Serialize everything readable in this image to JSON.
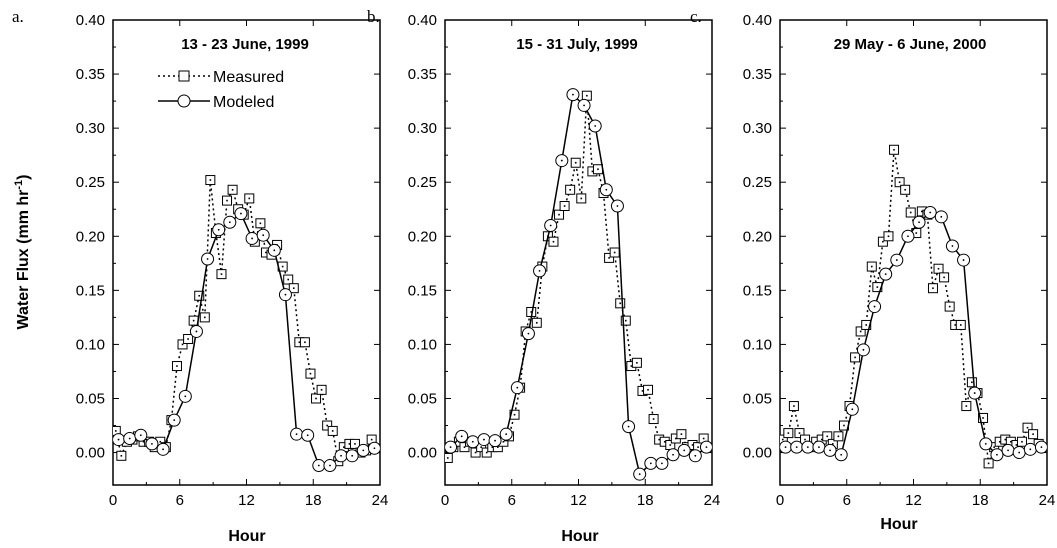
{
  "figure": {
    "ylabel_main": "Water Flux (mm hr",
    "ylabel_sup": "-1",
    "ylabel_close": ")"
  },
  "legend": {
    "measured": "Measured",
    "modeled": "Modeled"
  },
  "colors": {
    "ink": "#000000",
    "marker_fill": "#ffffff"
  },
  "chart_data": [
    {
      "type": "line",
      "panel": "a.",
      "title": "13 - 23 June, 1999",
      "xlabel": "Hour",
      "ylabel": "Water Flux (mm hr-1)",
      "xlim": [
        0,
        24
      ],
      "ylim": [
        -0.03,
        0.4
      ],
      "xticks": [
        0,
        6,
        12,
        18,
        24
      ],
      "yticks": [
        0.0,
        0.05,
        0.1,
        0.15,
        0.2,
        0.25,
        0.3,
        0.35,
        0.4
      ],
      "legend_position": "top-left",
      "series": [
        {
          "name": "Measured",
          "style": "dotted",
          "marker": "square",
          "points": [
            [
              0.25,
              0.02
            ],
            [
              0.75,
              -0.003
            ],
            [
              1.25,
              0.01
            ],
            [
              1.75,
              0.012
            ],
            [
              2.25,
              0.015
            ],
            [
              2.75,
              0.01
            ],
            [
              3.25,
              0.01
            ],
            [
              3.75,
              0.005
            ],
            [
              4.25,
              0.01
            ],
            [
              4.75,
              0.005
            ],
            [
              5.25,
              0.03
            ],
            [
              5.75,
              0.08
            ],
            [
              6.25,
              0.1
            ],
            [
              6.75,
              0.105
            ],
            [
              7.25,
              0.122
            ],
            [
              7.75,
              0.145
            ],
            [
              8.25,
              0.125
            ],
            [
              8.75,
              0.252
            ],
            [
              9.25,
              0.203
            ],
            [
              9.75,
              0.165
            ],
            [
              10.25,
              0.233
            ],
            [
              10.75,
              0.243
            ],
            [
              11.25,
              0.225
            ],
            [
              11.75,
              0.22
            ],
            [
              12.25,
              0.235
            ],
            [
              12.75,
              0.195
            ],
            [
              13.25,
              0.212
            ],
            [
              13.75,
              0.185
            ],
            [
              14.25,
              0.183
            ],
            [
              14.75,
              0.192
            ],
            [
              15.25,
              0.172
            ],
            [
              15.75,
              0.16
            ],
            [
              16.25,
              0.152
            ],
            [
              16.75,
              0.102
            ],
            [
              17.25,
              0.102
            ],
            [
              17.75,
              0.073
            ],
            [
              18.25,
              0.05
            ],
            [
              18.75,
              0.058
            ],
            [
              19.25,
              0.025
            ],
            [
              19.75,
              0.02
            ],
            [
              20.25,
              -0.008
            ],
            [
              20.75,
              0.005
            ],
            [
              21.25,
              0.008
            ],
            [
              21.75,
              0.008
            ],
            [
              22.25,
              0.0
            ],
            [
              22.75,
              0.002
            ],
            [
              23.25,
              0.012
            ]
          ]
        },
        {
          "name": "Modeled",
          "style": "solid",
          "marker": "circle",
          "points": [
            [
              0.5,
              0.012
            ],
            [
              1.5,
              0.013
            ],
            [
              2.5,
              0.016
            ],
            [
              3.5,
              0.008
            ],
            [
              4.5,
              0.003
            ],
            [
              5.5,
              0.03
            ],
            [
              6.5,
              0.052
            ],
            [
              7.5,
              0.112
            ],
            [
              8.5,
              0.179
            ],
            [
              9.5,
              0.206
            ],
            [
              10.5,
              0.213
            ],
            [
              11.5,
              0.221
            ],
            [
              12.5,
              0.198
            ],
            [
              13.5,
              0.201
            ],
            [
              14.5,
              0.187
            ],
            [
              15.5,
              0.146
            ],
            [
              16.5,
              0.017
            ],
            [
              17.5,
              0.016
            ],
            [
              18.5,
              -0.012
            ],
            [
              19.5,
              -0.012
            ],
            [
              20.5,
              -0.003
            ],
            [
              21.5,
              -0.003
            ],
            [
              22.5,
              0.002
            ],
            [
              23.5,
              0.004
            ]
          ]
        }
      ]
    },
    {
      "type": "line",
      "panel": "b.",
      "title": "15 - 31 July, 1999",
      "xlabel": "Hour",
      "ylabel": "",
      "xlim": [
        0,
        24
      ],
      "ylim": [
        -0.03,
        0.4
      ],
      "xticks": [
        0,
        6,
        12,
        18,
        24
      ],
      "yticks": [
        0.0,
        0.05,
        0.1,
        0.15,
        0.2,
        0.25,
        0.3,
        0.35,
        0.4
      ],
      "series": [
        {
          "name": "Measured",
          "style": "dotted",
          "marker": "square",
          "points": [
            [
              0.25,
              -0.005
            ],
            [
              0.75,
              0.005
            ],
            [
              1.25,
              0.01
            ],
            [
              1.75,
              0.005
            ],
            [
              2.25,
              0.01
            ],
            [
              2.75,
              0.0
            ],
            [
              3.25,
              0.005
            ],
            [
              3.75,
              0.0
            ],
            [
              4.25,
              0.005
            ],
            [
              4.75,
              0.005
            ],
            [
              5.25,
              0.01
            ],
            [
              5.75,
              0.015
            ],
            [
              6.25,
              0.035
            ],
            [
              6.75,
              0.06
            ],
            [
              7.25,
              0.112
            ],
            [
              7.75,
              0.13
            ],
            [
              8.25,
              0.12
            ],
            [
              8.75,
              0.172
            ],
            [
              9.25,
              0.2
            ],
            [
              9.75,
              0.195
            ],
            [
              10.25,
              0.22
            ],
            [
              10.75,
              0.228
            ],
            [
              11.25,
              0.243
            ],
            [
              11.75,
              0.268
            ],
            [
              12.25,
              0.235
            ],
            [
              12.75,
              0.33
            ],
            [
              13.25,
              0.26
            ],
            [
              13.75,
              0.262
            ],
            [
              14.25,
              0.24
            ],
            [
              14.75,
              0.18
            ],
            [
              15.25,
              0.185
            ],
            [
              15.75,
              0.138
            ],
            [
              16.25,
              0.122
            ],
            [
              16.75,
              0.08
            ],
            [
              17.25,
              0.083
            ],
            [
              17.75,
              0.057
            ],
            [
              18.25,
              0.058
            ],
            [
              18.75,
              0.031
            ],
            [
              19.25,
              0.012
            ],
            [
              19.75,
              0.01
            ],
            [
              20.25,
              0.007
            ],
            [
              20.75,
              0.013
            ],
            [
              21.25,
              0.017
            ],
            [
              21.75,
              0.005
            ],
            [
              22.25,
              0.007
            ],
            [
              22.75,
              0.005
            ],
            [
              23.25,
              0.013
            ]
          ]
        },
        {
          "name": "Modeled",
          "style": "solid",
          "marker": "circle",
          "points": [
            [
              0.5,
              0.005
            ],
            [
              1.5,
              0.015
            ],
            [
              2.5,
              0.01
            ],
            [
              3.5,
              0.012
            ],
            [
              4.5,
              0.011
            ],
            [
              5.5,
              0.017
            ],
            [
              6.5,
              0.06
            ],
            [
              7.5,
              0.11
            ],
            [
              8.5,
              0.168
            ],
            [
              9.5,
              0.21
            ],
            [
              10.5,
              0.27
            ],
            [
              11.5,
              0.331
            ],
            [
              12.5,
              0.321
            ],
            [
              13.5,
              0.302
            ],
            [
              14.5,
              0.243
            ],
            [
              15.5,
              0.228
            ],
            [
              16.5,
              0.024
            ],
            [
              17.5,
              -0.02
            ],
            [
              18.5,
              -0.01
            ],
            [
              19.5,
              -0.01
            ],
            [
              20.5,
              -0.002
            ],
            [
              21.5,
              0.002
            ],
            [
              22.5,
              -0.003
            ],
            [
              23.5,
              0.005
            ]
          ]
        }
      ]
    },
    {
      "type": "line",
      "panel": "c.",
      "title": "29 May - 6 June, 2000",
      "xlabel": "Hour",
      "ylabel": "",
      "xlim": [
        0,
        24
      ],
      "ylim": [
        -0.03,
        0.4
      ],
      "xticks": [
        0,
        6,
        12,
        18,
        24
      ],
      "yticks": [
        0.0,
        0.05,
        0.1,
        0.15,
        0.2,
        0.25,
        0.3,
        0.35,
        0.4
      ],
      "series": [
        {
          "name": "Measured",
          "style": "dotted",
          "marker": "square",
          "points": [
            [
              0.25,
              0.012
            ],
            [
              0.75,
              0.018
            ],
            [
              1.25,
              0.043
            ],
            [
              1.75,
              0.018
            ],
            [
              2.25,
              0.012
            ],
            [
              2.75,
              0.005
            ],
            [
              3.25,
              0.01
            ],
            [
              3.75,
              0.012
            ],
            [
              4.25,
              0.015
            ],
            [
              4.75,
              0.008
            ],
            [
              5.25,
              0.015
            ],
            [
              5.75,
              0.025
            ],
            [
              6.25,
              0.043
            ],
            [
              6.75,
              0.088
            ],
            [
              7.25,
              0.112
            ],
            [
              7.75,
              0.118
            ],
            [
              8.25,
              0.172
            ],
            [
              8.75,
              0.153
            ],
            [
              9.25,
              0.195
            ],
            [
              9.75,
              0.2
            ],
            [
              10.25,
              0.28
            ],
            [
              10.75,
              0.25
            ],
            [
              11.25,
              0.243
            ],
            [
              11.75,
              0.222
            ],
            [
              12.25,
              0.203
            ],
            [
              12.75,
              0.223
            ],
            [
              13.25,
              0.22
            ],
            [
              13.75,
              0.152
            ],
            [
              14.25,
              0.17
            ],
            [
              14.75,
              0.162
            ],
            [
              15.25,
              0.135
            ],
            [
              15.75,
              0.118
            ],
            [
              16.25,
              0.118
            ],
            [
              16.75,
              0.043
            ],
            [
              17.25,
              0.065
            ],
            [
              17.75,
              0.055
            ],
            [
              18.25,
              0.032
            ],
            [
              18.75,
              -0.01
            ],
            [
              19.25,
              0.005
            ],
            [
              19.75,
              0.01
            ],
            [
              20.25,
              0.012
            ],
            [
              20.75,
              0.01
            ],
            [
              21.25,
              0.007
            ],
            [
              21.75,
              0.01
            ],
            [
              22.25,
              0.023
            ],
            [
              22.75,
              0.017
            ],
            [
              23.25,
              0.008
            ]
          ]
        },
        {
          "name": "Modeled",
          "style": "solid",
          "marker": "circle",
          "points": [
            [
              0.5,
              0.005
            ],
            [
              1.5,
              0.005
            ],
            [
              2.5,
              0.005
            ],
            [
              3.5,
              0.005
            ],
            [
              4.5,
              0.002
            ],
            [
              5.5,
              -0.002
            ],
            [
              6.5,
              0.04
            ],
            [
              7.5,
              0.095
            ],
            [
              8.5,
              0.135
            ],
            [
              9.5,
              0.165
            ],
            [
              10.5,
              0.178
            ],
            [
              11.5,
              0.2
            ],
            [
              12.5,
              0.213
            ],
            [
              13.5,
              0.222
            ],
            [
              14.5,
              0.218
            ],
            [
              15.5,
              0.191
            ],
            [
              16.5,
              0.178
            ],
            [
              17.5,
              0.055
            ],
            [
              18.5,
              0.008
            ],
            [
              19.5,
              -0.002
            ],
            [
              20.5,
              0.002
            ],
            [
              21.5,
              0.0
            ],
            [
              22.5,
              0.003
            ],
            [
              23.5,
              0.005
            ]
          ]
        }
      ]
    }
  ]
}
